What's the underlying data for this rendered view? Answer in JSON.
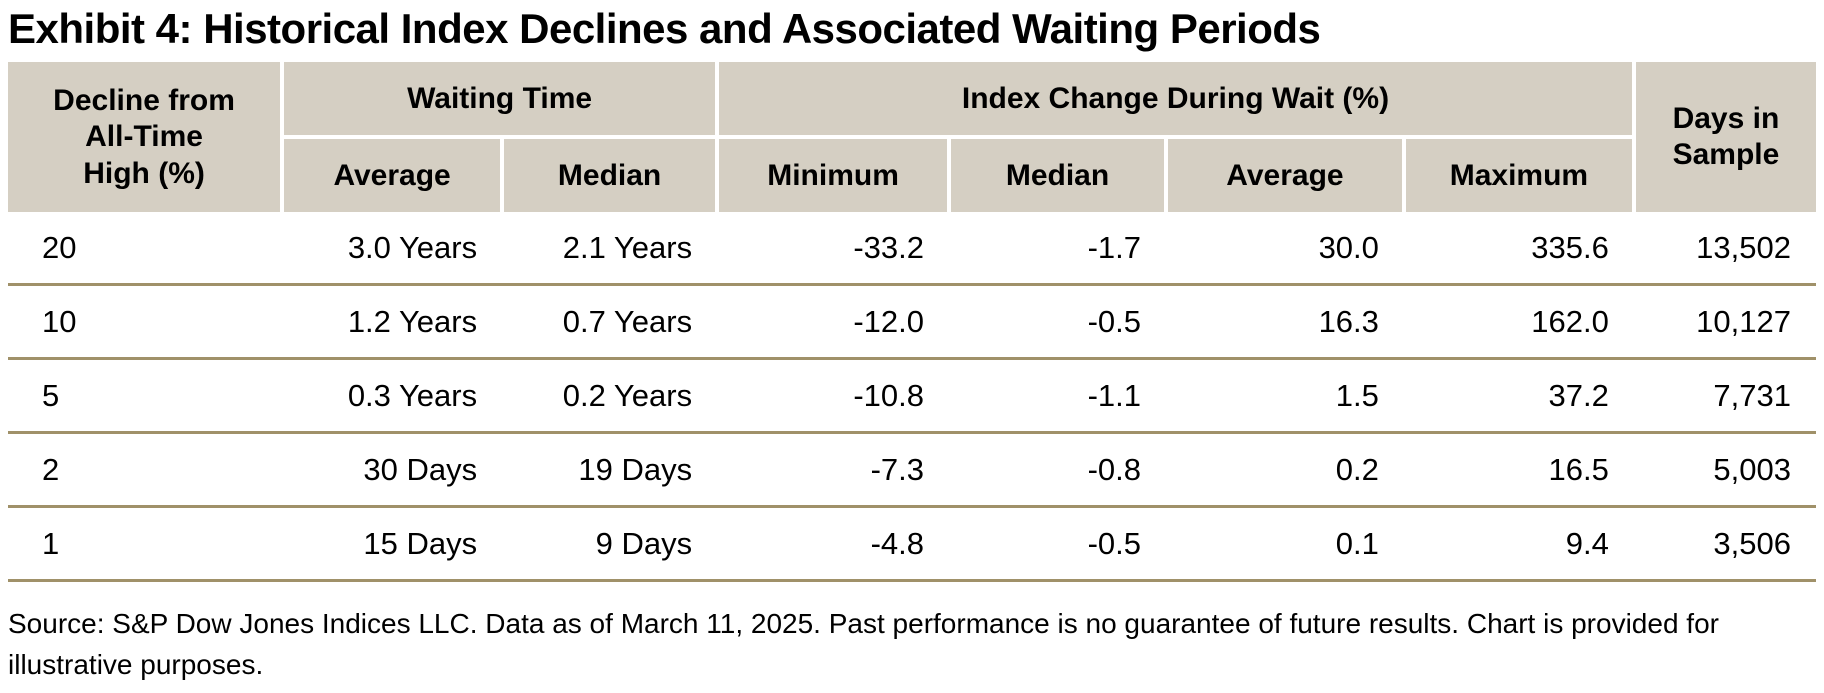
{
  "title": "Exhibit 4: Historical Index Declines and Associated Waiting Periods",
  "colors": {
    "header_bg": "#d5cfc3",
    "row_divider": "#a09169",
    "text": "#000000",
    "background": "#ffffff"
  },
  "table": {
    "header": {
      "decline": "Decline from\nAll-Time\nHigh (%)",
      "waiting_group": "Waiting Time",
      "index_group": "Index Change During Wait (%)",
      "days": "Days in\nSample",
      "sub": [
        "Average",
        "Median",
        "Minimum",
        "Median",
        "Average",
        "Maximum"
      ]
    },
    "rows": [
      [
        "20",
        "3.0 Years",
        "2.1 Years",
        "-33.2",
        "-1.7",
        "30.0",
        "335.6",
        "13,502"
      ],
      [
        "10",
        "1.2 Years",
        "0.7 Years",
        "-12.0",
        "-0.5",
        "16.3",
        "162.0",
        "10,127"
      ],
      [
        "5",
        "0.3 Years",
        "0.2 Years",
        "-10.8",
        "-1.1",
        "1.5",
        "37.2",
        "7,731"
      ],
      [
        "2",
        "30 Days",
        "19 Days",
        "-7.3",
        "-0.8",
        "0.2",
        "16.5",
        "5,003"
      ],
      [
        "1",
        "15 Days",
        "9 Days",
        "-4.8",
        "-0.5",
        "0.1",
        "9.4",
        "3,506"
      ]
    ]
  },
  "footer": {
    "source": "Source: S&P Dow Jones Indices LLC. Data as of March 11, 2025. Past performance is no guarantee of future results. Chart is provided for illustrative purposes."
  },
  "chart_data": {
    "type": "table",
    "title": "Exhibit 4: Historical Index Declines and Associated Waiting Periods",
    "column_groups": [
      "Decline from All-Time High (%)",
      "Waiting Time",
      "Index Change During Wait (%)",
      "Days in Sample"
    ],
    "columns": [
      "Decline from All-Time High (%)",
      "Waiting Time - Average",
      "Waiting Time - Median",
      "Index Change During Wait (%) - Minimum",
      "Index Change During Wait (%) - Median",
      "Index Change During Wait (%) - Average",
      "Index Change During Wait (%) - Maximum",
      "Days in Sample"
    ],
    "rows": [
      [
        20,
        "3.0 Years",
        "2.1 Years",
        -33.2,
        -1.7,
        30.0,
        335.6,
        13502
      ],
      [
        10,
        "1.2 Years",
        "0.7 Years",
        -12.0,
        -0.5,
        16.3,
        162.0,
        10127
      ],
      [
        5,
        "0.3 Years",
        "0.2 Years",
        -10.8,
        -1.1,
        1.5,
        37.2,
        7731
      ],
      [
        2,
        "30 Days",
        "19 Days",
        -7.3,
        -0.8,
        0.2,
        16.5,
        5003
      ],
      [
        1,
        "15 Days",
        "9 Days",
        -4.8,
        -0.5,
        0.1,
        9.4,
        3506
      ]
    ],
    "source": "Source: S&P Dow Jones Indices LLC. Data as of March 11, 2025. Past performance is no guarantee of future results. Chart is provided for illustrative purposes."
  }
}
